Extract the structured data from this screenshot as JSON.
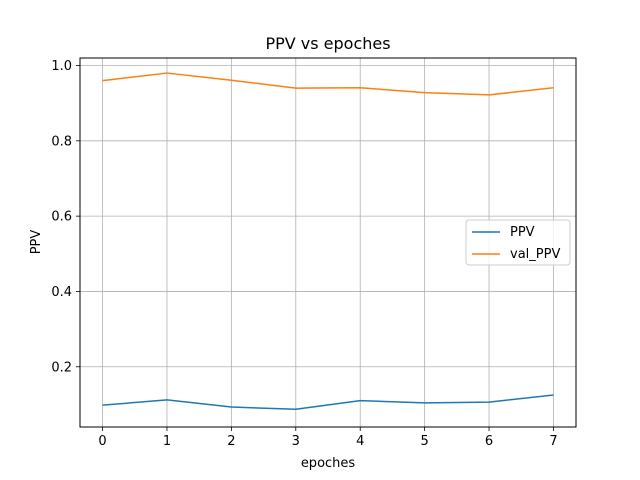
{
  "chart_data": {
    "type": "line",
    "title": "PPV vs epoches",
    "xlabel": "epoches",
    "ylabel": "PPV",
    "x": [
      0,
      1,
      2,
      3,
      4,
      5,
      6,
      7
    ],
    "xlim": [
      -0.35,
      7.35
    ],
    "ylim": [
      0.04,
      1.02
    ],
    "xticks": [
      0,
      1,
      2,
      3,
      4,
      5,
      6,
      7
    ],
    "yticks": [
      0.2,
      0.4,
      0.6,
      0.8,
      1.0
    ],
    "ytick_labels": [
      "0.2",
      "0.4",
      "0.6",
      "0.8",
      "1.0"
    ],
    "grid": true,
    "legend_position": "center-right",
    "series": [
      {
        "name": "PPV",
        "color": "#1f77b4",
        "values": [
          0.098,
          0.112,
          0.093,
          0.087,
          0.11,
          0.104,
          0.106,
          0.125
        ]
      },
      {
        "name": "val_PPV",
        "color": "#ff7f0e",
        "values": [
          0.96,
          0.98,
          0.961,
          0.94,
          0.941,
          0.928,
          0.922,
          0.941
        ]
      }
    ]
  }
}
